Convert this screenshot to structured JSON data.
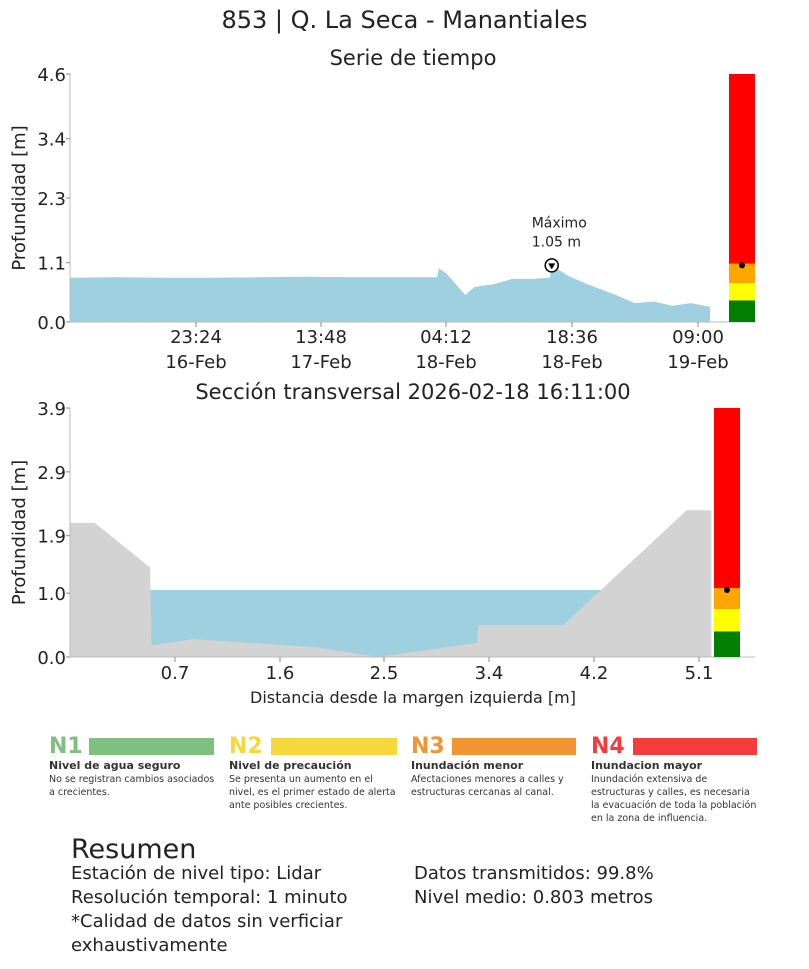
{
  "title": "853 | Q. La Seca - Manantiales",
  "colors": {
    "water": "#9ed0e0",
    "terrain": "#d3d3d3",
    "n1": "#008000",
    "n2": "#ffff00",
    "n3": "#ffa500",
    "n4": "#ff0000",
    "legend_n1": "#7fbf7f",
    "legend_n2": "#f5d83c",
    "legend_n3": "#f39432",
    "legend_n4": "#f53c3c"
  },
  "chart_data": [
    {
      "type": "area",
      "title": "Serie de tiempo",
      "ylabel": "Profundidad [m]",
      "ylim": [
        0,
        4.6
      ],
      "yticks": [
        "0.0",
        "1.1",
        "2.3",
        "3.4",
        "4.6"
      ],
      "xlim": [
        "2026-02-16 13:00",
        "2026-02-19 09:00"
      ],
      "xticks": [
        {
          "time": "23:24",
          "date": "16-Feb"
        },
        {
          "time": "13:48",
          "date": "17-Feb"
        },
        {
          "time": "04:12",
          "date": "18-Feb"
        },
        {
          "time": "18:36",
          "date": "18-Feb"
        },
        {
          "time": "09:00",
          "date": "19-Feb"
        }
      ],
      "series": [
        {
          "x": [
            "2026-02-16 13:00",
            "2026-02-16 18:00",
            "2026-02-16 23:00",
            "2026-02-17 04:00",
            "2026-02-17 09:00",
            "2026-02-17 14:00",
            "2026-02-17 19:00",
            "2026-02-18 00:00",
            "2026-02-18 04:00",
            "2026-02-18 04:12",
            "2026-02-18 05:00",
            "2026-02-18 07:00",
            "2026-02-18 08:00",
            "2026-02-18 10:00",
            "2026-02-18 12:00",
            "2026-02-18 14:00",
            "2026-02-18 16:00",
            "2026-02-18 16:11",
            "2026-02-18 18:00",
            "2026-02-18 20:00",
            "2026-02-18 23:00",
            "2026-02-19 01:00",
            "2026-02-19 03:00",
            "2026-02-19 05:00",
            "2026-02-19 07:00",
            "2026-02-19 09:00"
          ],
          "values": [
            0.82,
            0.83,
            0.82,
            0.82,
            0.83,
            0.84,
            0.83,
            0.83,
            0.83,
            1.0,
            0.9,
            0.5,
            0.65,
            0.7,
            0.8,
            0.8,
            0.82,
            1.05,
            0.85,
            0.7,
            0.5,
            0.35,
            0.38,
            0.3,
            0.35,
            0.28
          ]
        }
      ],
      "annotation": {
        "label": "Máximo",
        "value_label": "1.05 m",
        "x": "2026-02-18 16:11",
        "y": 1.05
      },
      "level_bar": {
        "n1_max": 0.4,
        "n2_max": 0.72,
        "n3_max": 1.08,
        "n4_max": 4.6,
        "marker": 1.05
      }
    },
    {
      "type": "area",
      "title": "Sección transversal 2026-02-18 16:11:00",
      "ylabel": "Profundidad [m]",
      "xlabel": "Distancia desde la margen izquierda [m]",
      "ylim": [
        0,
        3.9
      ],
      "xlim": [
        0,
        5.1
      ],
      "yticks": [
        "0.0",
        "1.0",
        "1.9",
        "2.9",
        "3.9"
      ],
      "xticks": [
        "0.7",
        "1.6",
        "2.5",
        "3.4",
        "4.2",
        "5.1"
      ],
      "water_level": 1.05,
      "terrain": {
        "x": [
          0,
          0.2,
          0.65,
          0.66,
          1.0,
          2.0,
          2.5,
          3.3,
          3.31,
          4.0,
          5.0,
          5.2
        ],
        "y": [
          2.1,
          2.1,
          1.4,
          0.18,
          0.28,
          0.15,
          0.0,
          0.22,
          0.5,
          0.5,
          2.3,
          2.3
        ]
      },
      "level_bar": {
        "n1_max": 0.4,
        "n2_max": 0.75,
        "n3_max": 1.08,
        "n4_max": 3.9,
        "marker": 1.05
      }
    }
  ],
  "legend": [
    {
      "code": "N1",
      "name": "Nivel de agua seguro",
      "desc": "No se registran cambios asociados a crecientes."
    },
    {
      "code": "N2",
      "name": "Nivel de precaución",
      "desc": "Se presenta un aumento en el nivel, es el primer estado de alerta ante posibles crecientes."
    },
    {
      "code": "N3",
      "name": "Inundación menor",
      "desc": "Afectaciones menores a calles y estructuras cercanas al canal."
    },
    {
      "code": "N4",
      "name": "Inundacion mayor",
      "desc": "Inundación extensiva de estructuras y calles, es necesaria la evacuación de toda la población en la zona de influencia."
    }
  ],
  "summary": {
    "heading": "Resumen",
    "station": "Estación de nivel tipo: Lidar",
    "resolution": "Resolución temporal: 1 minuto",
    "quality": "*Calidad de datos sin verficiar exhaustivamente",
    "transmitted": "Datos transmitidos: 99.8%",
    "mean_level": "Nivel medio: 0.803 metros"
  }
}
